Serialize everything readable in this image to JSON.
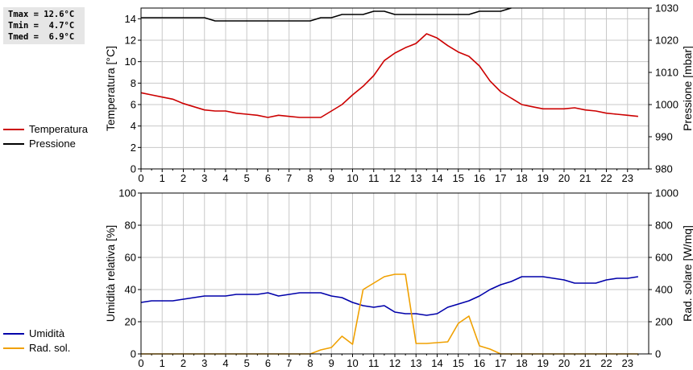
{
  "stats": {
    "tmax": "Tmax = 12.6°C",
    "tmin": "Tmin =  4.7°C",
    "tmed": "Tmed =  6.9°C"
  },
  "legend_top": [
    {
      "name": "Temperatura",
      "color": "#cc0000"
    },
    {
      "name": "Pressione",
      "color": "#000000"
    }
  ],
  "legend_bottom": [
    {
      "name": "Umidità",
      "color": "#0000aa"
    },
    {
      "name": "Rad. sol.",
      "color": "#f0a000"
    }
  ],
  "chart_data": [
    {
      "type": "line",
      "ylabel_left": "Temperatura [°C]",
      "ylabel_right": "Pressione [mbar]",
      "x_ticks": [
        0,
        1,
        2,
        3,
        4,
        5,
        6,
        7,
        8,
        9,
        10,
        11,
        12,
        13,
        14,
        15,
        16,
        17,
        18,
        19,
        20,
        21,
        22,
        23
      ],
      "xlim": [
        0,
        24
      ],
      "ylim_left": [
        0,
        15
      ],
      "ylim_right": [
        980,
        1030
      ],
      "yticks_left": [
        0,
        2,
        4,
        6,
        8,
        10,
        12,
        14
      ],
      "yticks_right": [
        980,
        990,
        1000,
        1010,
        1020,
        1030
      ],
      "grid": true,
      "series": [
        {
          "name": "Temperatura",
          "axis": "left",
          "color": "#cc0000",
          "x": [
            0,
            0.5,
            1,
            1.5,
            2,
            2.5,
            3,
            3.5,
            4,
            4.5,
            5,
            5.5,
            6,
            6.5,
            7,
            7.5,
            8,
            8.5,
            9,
            9.5,
            10,
            10.5,
            11,
            11.5,
            12,
            12.5,
            13,
            13.5,
            14,
            14.5,
            15,
            15.5,
            16,
            16.5,
            17,
            17.5,
            18,
            18.5,
            19,
            19.5,
            20,
            20.5,
            21,
            21.5,
            22,
            22.5,
            23,
            23.5
          ],
          "values": [
            7.1,
            6.9,
            6.7,
            6.5,
            6.1,
            5.8,
            5.5,
            5.4,
            5.4,
            5.2,
            5.1,
            5.0,
            4.8,
            5.0,
            4.9,
            4.8,
            4.8,
            4.8,
            5.4,
            6.0,
            6.9,
            7.7,
            8.7,
            10.1,
            10.8,
            11.3,
            11.7,
            12.6,
            12.2,
            11.5,
            10.9,
            10.5,
            9.6,
            8.2,
            7.2,
            6.6,
            6.0,
            5.8,
            5.6,
            5.6,
            5.6,
            5.7,
            5.5,
            5.4,
            5.2,
            5.1,
            5.0,
            4.9
          ]
        },
        {
          "name": "Pressione",
          "axis": "right",
          "color": "#000000",
          "x": [
            0,
            0.5,
            1,
            1.5,
            2,
            2.5,
            3,
            3.5,
            4,
            4.5,
            5,
            5.5,
            6,
            6.5,
            7,
            7.5,
            8,
            8.5,
            9,
            9.5,
            10,
            10.5,
            11,
            11.5,
            12,
            12.5,
            13,
            13.5,
            14,
            14.5,
            15,
            15.5,
            16,
            16.5,
            17,
            17.5
          ],
          "values": [
            1027,
            1027,
            1027,
            1027,
            1027,
            1027,
            1027,
            1026,
            1026,
            1026,
            1026,
            1026,
            1026,
            1026,
            1026,
            1026,
            1026,
            1027,
            1027,
            1028,
            1028,
            1028,
            1029,
            1029,
            1028,
            1028,
            1028,
            1028,
            1028,
            1028,
            1028,
            1028,
            1029,
            1029,
            1029,
            1030
          ]
        }
      ]
    },
    {
      "type": "line",
      "ylabel_left": "Umidità relativa [%]",
      "ylabel_right": "Rad. solare [W/mq]",
      "x_ticks": [
        0,
        1,
        2,
        3,
        4,
        5,
        6,
        7,
        8,
        9,
        10,
        11,
        12,
        13,
        14,
        15,
        16,
        17,
        18,
        19,
        20,
        21,
        22,
        23
      ],
      "xlim": [
        0,
        24
      ],
      "ylim_left": [
        0,
        100
      ],
      "ylim_right": [
        0,
        1000
      ],
      "yticks_left": [
        0,
        20,
        40,
        60,
        80,
        100
      ],
      "yticks_right": [
        0,
        200,
        400,
        600,
        800,
        1000
      ],
      "grid": true,
      "series": [
        {
          "name": "Umidità",
          "axis": "left",
          "color": "#0000aa",
          "x": [
            0,
            0.5,
            1,
            1.5,
            2,
            2.5,
            3,
            3.5,
            4,
            4.5,
            5,
            5.5,
            6,
            6.5,
            7,
            7.5,
            8,
            8.5,
            9,
            9.5,
            10,
            10.5,
            11,
            11.5,
            12,
            12.5,
            13,
            13.5,
            14,
            14.5,
            15,
            15.5,
            16,
            16.5,
            17,
            17.5,
            18,
            18.5,
            19,
            19.5,
            20,
            20.5,
            21,
            21.5,
            22,
            22.5,
            23,
            23.5
          ],
          "values": [
            32,
            33,
            33,
            33,
            34,
            35,
            36,
            36,
            36,
            37,
            37,
            37,
            38,
            36,
            37,
            38,
            38,
            38,
            36,
            35,
            32,
            30,
            29,
            30,
            26,
            25,
            25,
            24,
            25,
            29,
            31,
            33,
            36,
            40,
            43,
            45,
            48,
            48,
            48,
            47,
            46,
            44,
            44,
            44,
            46,
            47,
            47,
            48
          ]
        },
        {
          "name": "Rad. sol.",
          "axis": "right",
          "color": "#f0a000",
          "x": [
            0,
            1,
            2,
            3,
            4,
            5,
            6,
            7,
            8,
            8.5,
            9,
            9.5,
            10,
            10.5,
            11,
            11.5,
            12,
            12.5,
            13,
            13.5,
            14,
            14.5,
            15,
            15.5,
            16,
            16.5,
            17,
            18,
            19,
            20,
            21,
            22,
            23,
            23.5
          ],
          "values": [
            0,
            0,
            0,
            0,
            0,
            0,
            0,
            0,
            0,
            25,
            40,
            110,
            60,
            400,
            440,
            480,
            495,
            495,
            65,
            65,
            70,
            75,
            190,
            235,
            50,
            30,
            0,
            0,
            0,
            0,
            0,
            0,
            0,
            0
          ]
        }
      ]
    }
  ]
}
